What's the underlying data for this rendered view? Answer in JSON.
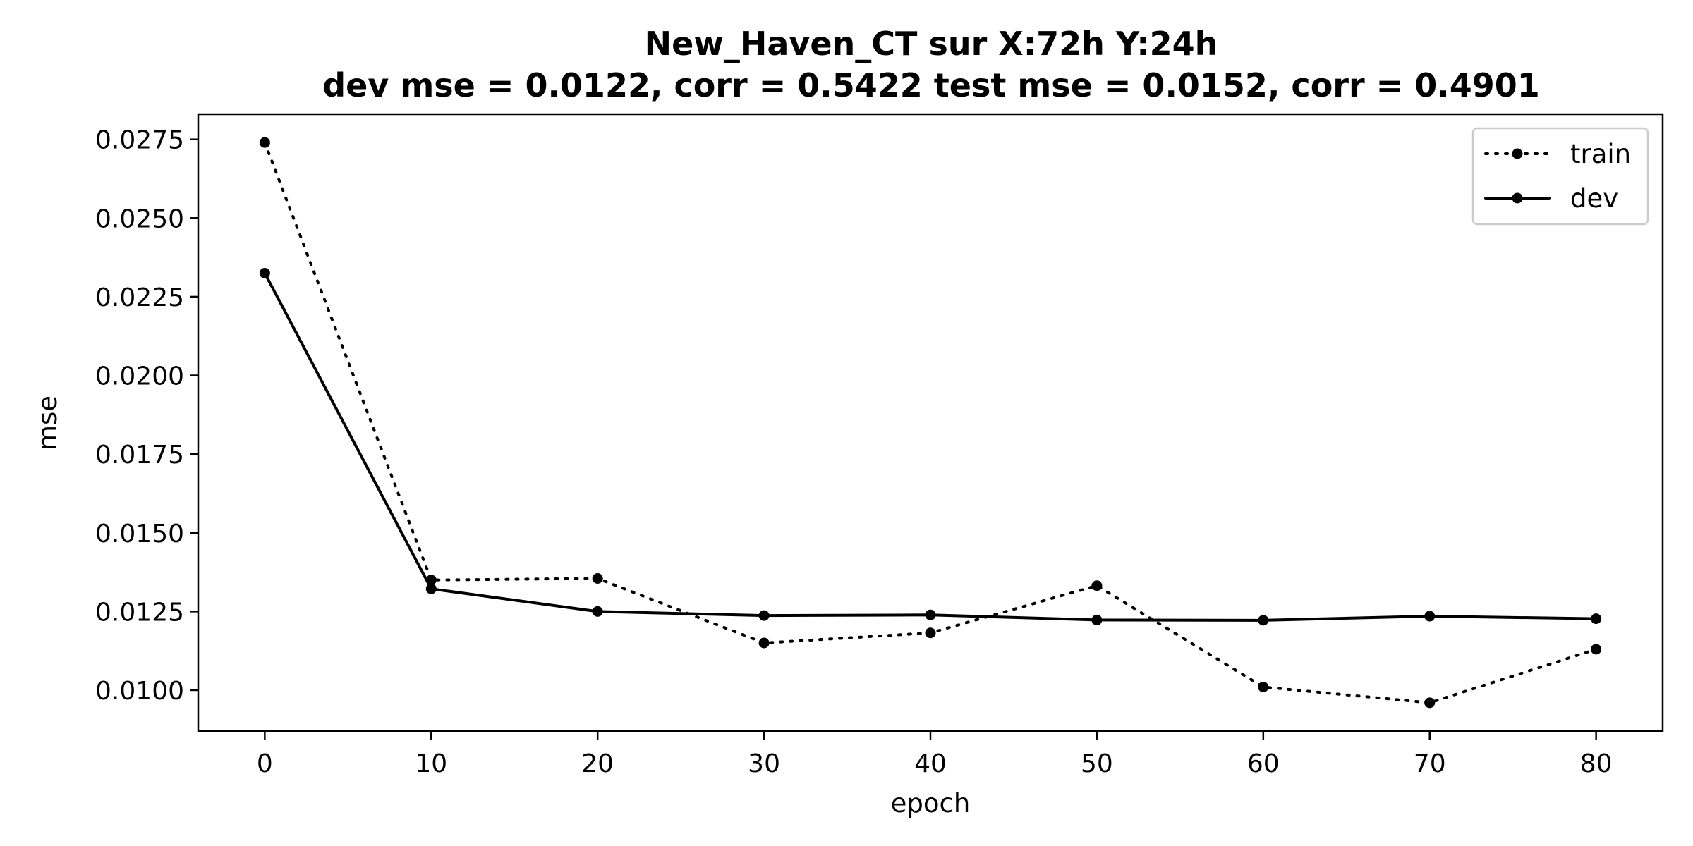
{
  "chart_data": {
    "type": "line",
    "title": "New_Haven_CT   sur   X:72h   Y:24h",
    "subtitle": "dev mse = 0.0122, corr = 0.5422   test mse = 0.0152, corr = 0.4901",
    "xlabel": "epoch",
    "ylabel": "mse",
    "xlim": [
      -4,
      84
    ],
    "ylim": [
      0.0087,
      0.0283
    ],
    "xticks": [
      0,
      10,
      20,
      30,
      40,
      50,
      60,
      70,
      80
    ],
    "xtick_labels": [
      "0",
      "10",
      "20",
      "30",
      "40",
      "50",
      "60",
      "70",
      "80"
    ],
    "yticks": [
      0.01,
      0.0125,
      0.015,
      0.0175,
      0.02,
      0.0225,
      0.025,
      0.0275
    ],
    "ytick_labels": [
      "0.0100",
      "0.0125",
      "0.0150",
      "0.0175",
      "0.0200",
      "0.0225",
      "0.0250",
      "0.0275"
    ],
    "x": [
      0,
      10,
      20,
      30,
      40,
      50,
      60,
      70,
      80
    ],
    "series": [
      {
        "name": "train",
        "style": "dotted",
        "color": "#000000",
        "values": [
          0.0274,
          0.0135,
          0.01355,
          0.0115,
          0.01182,
          0.01332,
          0.0101,
          0.0096,
          0.0113
        ]
      },
      {
        "name": "dev",
        "style": "solid",
        "color": "#000000",
        "values": [
          0.02325,
          0.01322,
          0.0125,
          0.01237,
          0.01239,
          0.01223,
          0.01222,
          0.01235,
          0.01227
        ]
      }
    ],
    "grid": false,
    "legend": "top-right"
  }
}
